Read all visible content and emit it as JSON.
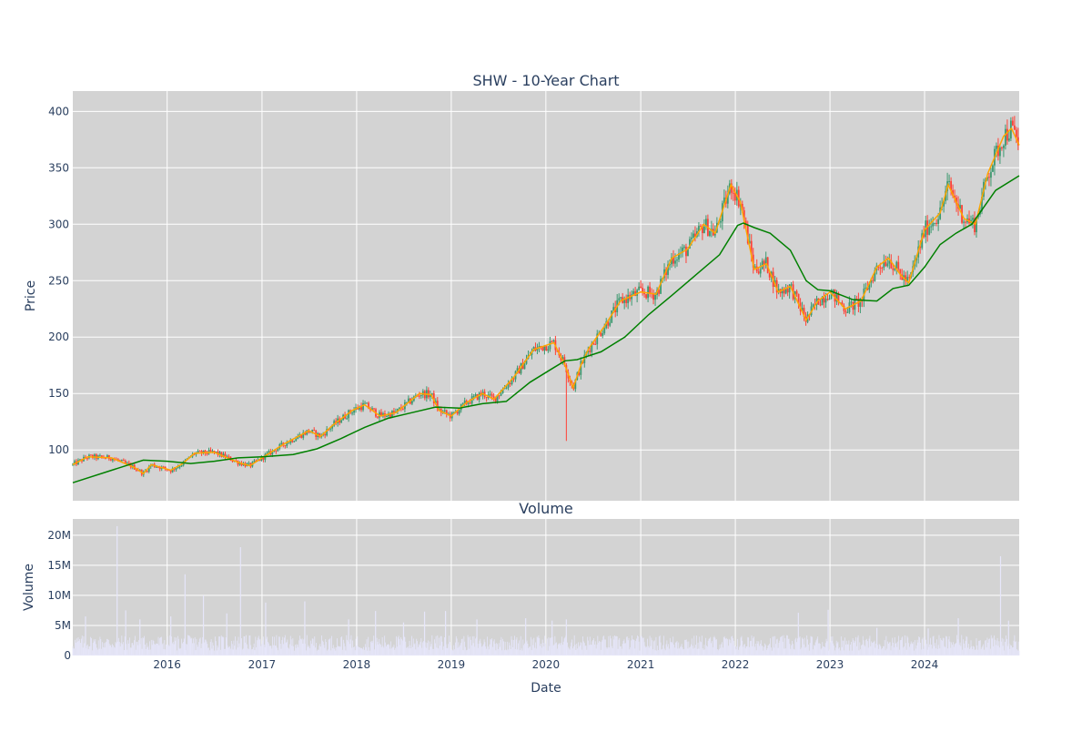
{
  "chart_data": [
    {
      "type": "candlestick",
      "title": "SHW - 10-Year Chart",
      "xlabel": "",
      "ylabel": "Price",
      "x_range": [
        "2015-01-02",
        "2024-12-31"
      ],
      "ylim": [
        55,
        418
      ],
      "yticks": [
        100,
        150,
        200,
        250,
        300,
        350,
        400
      ],
      "grid": true,
      "up_color": "#3d9970",
      "down_color": "#ff4136",
      "series": [
        {
          "type": "line",
          "color": "#ffa500",
          "points": [
            [
              "2015-01-02",
              87
            ],
            [
              "2015-03-01",
              94
            ],
            [
              "2015-06-01",
              93
            ],
            [
              "2015-09-01",
              84
            ],
            [
              "2015-10-01",
              79
            ],
            [
              "2015-11-01",
              87
            ],
            [
              "2016-01-15",
              82
            ],
            [
              "2016-03-01",
              88
            ],
            [
              "2016-04-15",
              97
            ],
            [
              "2016-07-01",
              98
            ],
            [
              "2016-10-01",
              89
            ],
            [
              "2016-11-15",
              86
            ],
            [
              "2017-01-15",
              95
            ],
            [
              "2017-04-01",
              106
            ],
            [
              "2017-07-01",
              117
            ],
            [
              "2017-08-15",
              112
            ],
            [
              "2017-10-01",
              122
            ],
            [
              "2017-12-15",
              135
            ],
            [
              "2018-02-01",
              140
            ],
            [
              "2018-04-01",
              130
            ],
            [
              "2018-06-01",
              133
            ],
            [
              "2018-09-01",
              150
            ],
            [
              "2018-10-15",
              149
            ],
            [
              "2018-11-15",
              135
            ],
            [
              "2019-01-01",
              130
            ],
            [
              "2019-03-01",
              142
            ],
            [
              "2019-05-01",
              150
            ],
            [
              "2019-06-15",
              145
            ],
            [
              "2019-09-01",
              165
            ],
            [
              "2019-11-15",
              189
            ],
            [
              "2020-02-01",
              195
            ],
            [
              "2020-03-15",
              175
            ],
            [
              "2020-04-15",
              155
            ],
            [
              "2020-05-15",
              175
            ],
            [
              "2020-06-15",
              190
            ],
            [
              "2020-08-15",
              210
            ],
            [
              "2020-10-15",
              232
            ],
            [
              "2021-01-01",
              240
            ],
            [
              "2021-03-01",
              238
            ],
            [
              "2021-05-01",
              270
            ],
            [
              "2021-07-01",
              278
            ],
            [
              "2021-09-01",
              300
            ],
            [
              "2021-10-15",
              292
            ],
            [
              "2021-12-15",
              335
            ],
            [
              "2022-01-20",
              320
            ],
            [
              "2022-03-15",
              260
            ],
            [
              "2022-05-01",
              265
            ],
            [
              "2022-06-15",
              240
            ],
            [
              "2022-08-01",
              245
            ],
            [
              "2022-10-01",
              215
            ],
            [
              "2022-11-15",
              232
            ],
            [
              "2023-01-01",
              240
            ],
            [
              "2023-03-01",
              225
            ],
            [
              "2023-05-01",
              232
            ],
            [
              "2023-07-01",
              262
            ],
            [
              "2023-08-15",
              270
            ],
            [
              "2023-10-01",
              255
            ],
            [
              "2023-11-01",
              248
            ],
            [
              "2024-01-01",
              295
            ],
            [
              "2024-03-01",
              310
            ],
            [
              "2024-04-01",
              335
            ],
            [
              "2024-06-01",
              305
            ],
            [
              "2024-07-15",
              300
            ],
            [
              "2024-09-01",
              345
            ],
            [
              "2024-11-01",
              378
            ],
            [
              "2024-12-01",
              385
            ],
            [
              "2024-12-31",
              370
            ]
          ]
        },
        {
          "type": "line",
          "color": "#008000",
          "points": [
            [
              "2015-01-02",
              71
            ],
            [
              "2015-06-01",
              82
            ],
            [
              "2015-10-01",
              91
            ],
            [
              "2016-01-01",
              90
            ],
            [
              "2016-04-01",
              88
            ],
            [
              "2016-07-01",
              90
            ],
            [
              "2016-10-01",
              93
            ],
            [
              "2017-01-01",
              94
            ],
            [
              "2017-05-01",
              96
            ],
            [
              "2017-08-01",
              101
            ],
            [
              "2017-11-01",
              110
            ],
            [
              "2018-02-01",
              120
            ],
            [
              "2018-05-01",
              128
            ],
            [
              "2018-08-01",
              133
            ],
            [
              "2018-11-01",
              138
            ],
            [
              "2019-02-01",
              137
            ],
            [
              "2019-05-01",
              141
            ],
            [
              "2019-08-01",
              143
            ],
            [
              "2019-11-01",
              160
            ],
            [
              "2020-02-01",
              173
            ],
            [
              "2020-03-15",
              179
            ],
            [
              "2020-05-01",
              180
            ],
            [
              "2020-08-01",
              187
            ],
            [
              "2020-11-01",
              200
            ],
            [
              "2021-02-01",
              220
            ],
            [
              "2021-05-01",
              237
            ],
            [
              "2021-08-01",
              255
            ],
            [
              "2021-11-01",
              273
            ],
            [
              "2022-01-10",
              299
            ],
            [
              "2022-02-01",
              301
            ],
            [
              "2022-03-15",
              297
            ],
            [
              "2022-05-15",
              292
            ],
            [
              "2022-08-01",
              277
            ],
            [
              "2022-10-01",
              250
            ],
            [
              "2022-11-15",
              242
            ],
            [
              "2023-01-01",
              241
            ],
            [
              "2023-04-01",
              233
            ],
            [
              "2023-07-01",
              232
            ],
            [
              "2023-09-01",
              243
            ],
            [
              "2023-11-01",
              246
            ],
            [
              "2024-01-01",
              262
            ],
            [
              "2024-03-01",
              282
            ],
            [
              "2024-05-01",
              292
            ],
            [
              "2024-07-01",
              300
            ],
            [
              "2024-10-01",
              330
            ],
            [
              "2024-12-31",
              343
            ]
          ]
        }
      ]
    },
    {
      "type": "bar",
      "title": "Volume",
      "xlabel": "Date",
      "ylabel": "Volume",
      "x_range": [
        "2015-01-02",
        "2024-12-31"
      ],
      "ylim": [
        0,
        22700000
      ],
      "yticks": [
        0,
        5000000,
        10000000,
        15000000,
        20000000
      ],
      "ytick_labels": [
        "0",
        "5M",
        "10M",
        "15M",
        "20M"
      ],
      "xtick_labels": [
        "2016",
        "2017",
        "2018",
        "2019",
        "2020",
        "2021",
        "2022",
        "2023",
        "2024"
      ],
      "grid": true,
      "bar_color": "#e6e6fa",
      "spikes": [
        [
          "2015-02-20",
          6500000
        ],
        [
          "2015-06-22",
          21500000
        ],
        [
          "2015-07-25",
          7500000
        ],
        [
          "2015-09-18",
          6000000
        ],
        [
          "2016-01-15",
          6500000
        ],
        [
          "2016-03-10",
          13500000
        ],
        [
          "2016-05-20",
          10000000
        ],
        [
          "2016-08-18",
          7000000
        ],
        [
          "2016-10-10",
          18000000
        ],
        [
          "2017-01-15",
          8800000
        ],
        [
          "2017-06-15",
          9000000
        ],
        [
          "2017-12-01",
          6000000
        ],
        [
          "2018-03-15",
          7400000
        ],
        [
          "2018-07-01",
          5500000
        ],
        [
          "2018-09-20",
          7300000
        ],
        [
          "2018-12-10",
          7400000
        ],
        [
          "2019-04-10",
          6000000
        ],
        [
          "2019-10-15",
          6200000
        ],
        [
          "2020-01-25",
          5800000
        ],
        [
          "2020-03-20",
          6000000
        ],
        [
          "2022-09-01",
          7100000
        ],
        [
          "2022-12-25",
          7600000
        ],
        [
          "2023-07-01",
          4600000
        ],
        [
          "2024-01-15",
          4500000
        ],
        [
          "2024-05-10",
          6200000
        ],
        [
          "2024-10-20",
          16500000
        ],
        [
          "2024-11-20",
          5800000
        ]
      ]
    }
  ]
}
